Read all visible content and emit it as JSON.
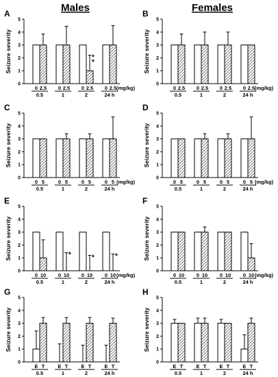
{
  "figure": {
    "title_left": "Males",
    "title_right": "Females"
  },
  "chart_data": [
    {
      "panel": "A",
      "type": "bar",
      "ylabel": "Seizure severity",
      "ylim": [
        0,
        5
      ],
      "yticks": [
        0,
        1,
        2,
        3,
        4,
        5
      ],
      "groups": [
        "0.5",
        "1",
        "2",
        "24 h"
      ],
      "bar_labels": [
        "0",
        "2.5"
      ],
      "unit": "(mg/kg)",
      "series": [
        {
          "values": [
            3,
            3,
            3,
            3
          ],
          "errors": [
            0,
            0,
            0,
            0
          ]
        },
        {
          "values": [
            3,
            3,
            1,
            3
          ],
          "errors": [
            0.85,
            1.45,
            1.2,
            1.5
          ]
        }
      ],
      "annotations": [
        {
          "group": 2,
          "bar": 1,
          "text": "**"
        }
      ]
    },
    {
      "panel": "B",
      "type": "bar",
      "ylabel": "Seizure severity",
      "ylim": [
        0,
        5
      ],
      "yticks": [
        0,
        1,
        2,
        3,
        4,
        5
      ],
      "groups": [
        "0.5",
        "1",
        "2",
        "24 h"
      ],
      "bar_labels": [
        "0",
        "2.5"
      ],
      "unit": "(mg/kg)",
      "series": [
        {
          "values": [
            3,
            3,
            3,
            3
          ],
          "errors": [
            0,
            0,
            0,
            0
          ]
        },
        {
          "values": [
            3,
            3,
            3,
            3
          ],
          "errors": [
            0.85,
            1.0,
            1.0,
            0
          ]
        }
      ],
      "annotations": []
    },
    {
      "panel": "C",
      "type": "bar",
      "ylabel": "Seizure severity",
      "ylim": [
        0,
        5
      ],
      "yticks": [
        0,
        1,
        2,
        3,
        4,
        5
      ],
      "groups": [
        "0.5",
        "1",
        "2",
        "24 h"
      ],
      "bar_labels": [
        "0",
        "5"
      ],
      "unit": "(mg/kg)",
      "series": [
        {
          "values": [
            3,
            3,
            3,
            3
          ],
          "errors": [
            0,
            0,
            0,
            0
          ]
        },
        {
          "values": [
            3,
            3,
            3,
            3
          ],
          "errors": [
            0,
            0.4,
            0.4,
            1.7
          ]
        }
      ],
      "annotations": []
    },
    {
      "panel": "D",
      "type": "bar",
      "ylabel": "Seizure severity",
      "ylim": [
        0,
        5
      ],
      "yticks": [
        0,
        1,
        2,
        3,
        4,
        5
      ],
      "groups": [
        "0.5",
        "1",
        "2",
        "24 h"
      ],
      "bar_labels": [
        "0",
        "5"
      ],
      "unit": "(mg/kg)",
      "series": [
        {
          "values": [
            3,
            3,
            3,
            3
          ],
          "errors": [
            0,
            0,
            0,
            0
          ]
        },
        {
          "values": [
            3,
            3,
            3,
            3
          ],
          "errors": [
            0,
            0.4,
            0.4,
            1.7
          ]
        }
      ],
      "annotations": []
    },
    {
      "panel": "E",
      "type": "bar",
      "ylabel": "Seizure severity",
      "ylim": [
        0,
        5
      ],
      "yticks": [
        0,
        1,
        2,
        3,
        4,
        5
      ],
      "groups": [
        "0.5",
        "1",
        "2",
        "24 h"
      ],
      "bar_labels": [
        "0",
        "10"
      ],
      "unit": "(mg/kg)",
      "series": [
        {
          "values": [
            3,
            3,
            3,
            3
          ],
          "errors": [
            0,
            0,
            0,
            0
          ]
        },
        {
          "values": [
            1,
            0,
            0,
            0
          ],
          "errors": [
            1.4,
            1.4,
            1.2,
            1.3
          ]
        }
      ],
      "annotations": [
        {
          "group": 1,
          "bar": 1,
          "text": "*"
        },
        {
          "group": 2,
          "bar": 1,
          "text": "*"
        },
        {
          "group": 3,
          "bar": 1,
          "text": "*"
        }
      ]
    },
    {
      "panel": "F",
      "type": "bar",
      "ylabel": "Seizure severity",
      "ylim": [
        0,
        5
      ],
      "yticks": [
        0,
        1,
        2,
        3,
        4,
        5
      ],
      "groups": [
        "0.5",
        "1",
        "2",
        "24 h"
      ],
      "bar_labels": [
        "0",
        "10"
      ],
      "unit": "(mg/kg)",
      "series": [
        {
          "values": [
            3,
            3,
            3,
            3
          ],
          "errors": [
            0,
            0,
            0,
            0
          ]
        },
        {
          "values": [
            3,
            3,
            3,
            1
          ],
          "errors": [
            0,
            0.4,
            0,
            1.1
          ]
        }
      ],
      "annotations": []
    },
    {
      "panel": "G",
      "type": "bar",
      "ylabel": "Seizure severity",
      "ylim": [
        0,
        5
      ],
      "yticks": [
        0,
        1,
        2,
        3,
        4,
        5
      ],
      "groups": [
        "0.5",
        "1",
        "2",
        "24 h"
      ],
      "bar_labels": [
        "E",
        "T"
      ],
      "unit": "",
      "series": [
        {
          "values": [
            1,
            0,
            0,
            0
          ],
          "errors": [
            1.4,
            1.4,
            1.3,
            1.3
          ]
        },
        {
          "values": [
            3,
            3,
            3,
            3
          ],
          "errors": [
            0.45,
            0.45,
            0.45,
            0.4
          ]
        }
      ],
      "annotations": []
    },
    {
      "panel": "H",
      "type": "bar",
      "ylabel": "Seizure severity",
      "ylim": [
        0,
        5
      ],
      "yticks": [
        0,
        1,
        2,
        3,
        4,
        5
      ],
      "groups": [
        "0.5",
        "1",
        "2",
        "24 h"
      ],
      "bar_labels": [
        "E",
        "T"
      ],
      "unit": "",
      "series": [
        {
          "values": [
            3,
            3,
            3,
            1
          ],
          "errors": [
            0.3,
            0.4,
            0.3,
            1.1
          ]
        },
        {
          "values": [
            3,
            3,
            3,
            3
          ],
          "errors": [
            0,
            0.4,
            0,
            0.4
          ]
        }
      ],
      "annotations": []
    }
  ]
}
